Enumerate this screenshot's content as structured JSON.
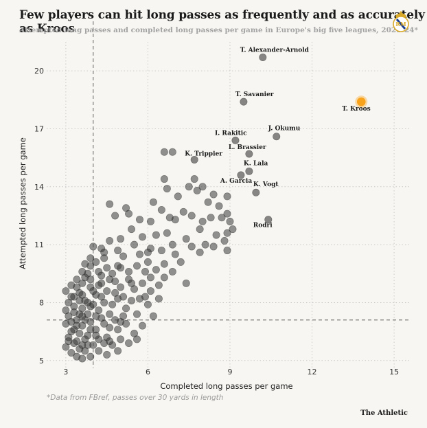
{
  "header": {
    "title": "Few players can hit long passes as frequently and as accurately as Kroos",
    "subtitle": "Attempted long passes and completed long passes per game in Europe's big five leagues, 2023-24*"
  },
  "logo": {
    "icon": "real-madrid-crest-icon",
    "gold": "#d8a928",
    "blue": "#1f3f8f",
    "red": "#c8283a"
  },
  "footnote": "*Data from FBref, passes over 30 yards in length",
  "brand": "The Athletic",
  "colors": {
    "point": "#3a3a3a",
    "highlight": "#f9a21b",
    "grid": "#c9c9c9",
    "reference": "#7a7a7a"
  },
  "chart_data": {
    "type": "scatter",
    "title": "Few players can hit long passes as frequently and as accurately as Kroos",
    "xlabel": "Completed long passes per game",
    "ylabel": "Attempted long passes per game",
    "xlim": [
      2.3,
      15.6
    ],
    "ylim": [
      4.6,
      21.5
    ],
    "x_ticks": [
      3,
      6,
      9,
      12,
      15
    ],
    "y_ticks": [
      5,
      8,
      11,
      14,
      17,
      20
    ],
    "reference_lines": {
      "x": 4,
      "y": 7.1
    },
    "grid": "dotted",
    "labeled_points": [
      {
        "name": "T. Alexander-Arnold",
        "x": 10.2,
        "y": 20.7
      },
      {
        "name": "T. Savanier",
        "x": 9.5,
        "y": 18.4
      },
      {
        "name": "T. Kroos",
        "x": 13.8,
        "y": 18.4,
        "highlight": true
      },
      {
        "name": "I. Rakitic",
        "x": 9.2,
        "y": 16.4
      },
      {
        "name": "J. Okumu",
        "x": 10.7,
        "y": 16.6
      },
      {
        "name": "L. Brassier",
        "x": 9.7,
        "y": 15.7
      },
      {
        "name": "K. Trippier",
        "x": 7.7,
        "y": 15.4
      },
      {
        "name": "K. Lala",
        "x": 9.7,
        "y": 14.8
      },
      {
        "name": "A. Garcia",
        "x": 9.4,
        "y": 14.6
      },
      {
        "name": "K. Vogt",
        "x": 9.95,
        "y": 13.7
      },
      {
        "name": "Rodri",
        "x": 10.4,
        "y": 12.3
      }
    ],
    "points": [
      [
        6.6,
        15.8
      ],
      [
        6.9,
        15.8
      ],
      [
        7.1,
        13.5
      ],
      [
        7.5,
        14.0
      ],
      [
        7.7,
        14.4
      ],
      [
        7.8,
        13.8
      ],
      [
        8.0,
        14.0
      ],
      [
        8.2,
        13.2
      ],
      [
        8.4,
        13.6
      ],
      [
        8.6,
        13.0
      ],
      [
        8.9,
        13.5
      ],
      [
        7.3,
        12.7
      ],
      [
        7.6,
        12.5
      ],
      [
        8.0,
        12.2
      ],
      [
        8.3,
        12.4
      ],
      [
        8.7,
        12.4
      ],
      [
        8.9,
        12.6
      ],
      [
        9.0,
        12.2
      ],
      [
        6.8,
        12.4
      ],
      [
        7.9,
        11.8
      ],
      [
        8.5,
        11.5
      ],
      [
        8.8,
        11.2
      ],
      [
        8.9,
        11.6
      ],
      [
        9.1,
        11.8
      ],
      [
        8.9,
        10.7
      ],
      [
        8.1,
        11.0
      ],
      [
        7.4,
        11.3
      ],
      [
        6.9,
        11.0
      ],
      [
        6.5,
        12.8
      ],
      [
        6.2,
        13.2
      ],
      [
        6.7,
        13.9
      ],
      [
        6.6,
        14.4
      ],
      [
        6.1,
        12.2
      ],
      [
        5.7,
        12.3
      ],
      [
        5.3,
        12.6
      ],
      [
        5.4,
        11.8
      ],
      [
        5.2,
        12.9
      ],
      [
        5.0,
        11.3
      ],
      [
        4.8,
        12.5
      ],
      [
        4.6,
        13.1
      ],
      [
        5.8,
        11.4
      ],
      [
        6.3,
        11.5
      ],
      [
        6.7,
        11.6
      ],
      [
        7.0,
        12.3
      ],
      [
        7.6,
        10.9
      ],
      [
        6.5,
        10.7
      ],
      [
        6.1,
        10.8
      ],
      [
        5.7,
        10.5
      ],
      [
        5.5,
        11.0
      ],
      [
        5.1,
        10.4
      ],
      [
        4.9,
        10.7
      ],
      [
        4.6,
        11.2
      ],
      [
        4.3,
        10.8
      ],
      [
        4.0,
        10.9
      ],
      [
        4.1,
        10.1
      ],
      [
        4.4,
        10.3
      ],
      [
        4.2,
        9.6
      ],
      [
        4.5,
        9.8
      ],
      [
        4.7,
        9.5
      ],
      [
        5.0,
        9.8
      ],
      [
        5.3,
        9.6
      ],
      [
        5.6,
        9.9
      ],
      [
        6.0,
        10.1
      ],
      [
        6.3,
        9.7
      ],
      [
        6.6,
        9.3
      ],
      [
        6.9,
        9.6
      ],
      [
        7.4,
        9.0
      ],
      [
        7.2,
        10.1
      ],
      [
        6.4,
        8.9
      ],
      [
        6.1,
        8.6
      ],
      [
        5.8,
        9.0
      ],
      [
        5.5,
        8.7
      ],
      [
        5.3,
        9.2
      ],
      [
        5.0,
        8.8
      ],
      [
        4.8,
        9.1
      ],
      [
        4.5,
        8.6
      ],
      [
        4.3,
        9.0
      ],
      [
        4.1,
        8.4
      ],
      [
        3.9,
        8.8
      ],
      [
        3.8,
        9.5
      ],
      [
        3.6,
        9.0
      ],
      [
        3.5,
        8.5
      ],
      [
        3.4,
        9.2
      ],
      [
        3.7,
        8.1
      ],
      [
        3.9,
        7.8
      ],
      [
        4.2,
        7.6
      ],
      [
        4.4,
        8.0
      ],
      [
        4.7,
        7.9
      ],
      [
        4.9,
        8.2
      ],
      [
        5.2,
        7.7
      ],
      [
        5.4,
        8.1
      ],
      [
        5.6,
        7.4
      ],
      [
        6.0,
        7.9
      ],
      [
        5.9,
        8.3
      ],
      [
        6.4,
        8.2
      ],
      [
        6.2,
        7.3
      ],
      [
        5.8,
        6.8
      ],
      [
        5.5,
        6.4
      ],
      [
        5.2,
        6.9
      ],
      [
        5.0,
        6.1
      ],
      [
        4.8,
        7.1
      ],
      [
        4.6,
        6.7
      ],
      [
        4.5,
        6.2
      ],
      [
        4.3,
        7.2
      ],
      [
        4.1,
        6.6
      ],
      [
        4.0,
        5.8
      ],
      [
        3.9,
        7.0
      ],
      [
        3.8,
        6.3
      ],
      [
        3.7,
        5.5
      ],
      [
        3.6,
        6.8
      ],
      [
        3.5,
        7.4
      ],
      [
        3.4,
        6.0
      ],
      [
        3.3,
        6.6
      ],
      [
        3.3,
        7.8
      ],
      [
        3.2,
        5.4
      ],
      [
        3.2,
        7.0
      ],
      [
        3.1,
        6.2
      ],
      [
        3.1,
        8.0
      ],
      [
        3.0,
        5.7
      ],
      [
        3.0,
        6.9
      ],
      [
        3.0,
        8.6
      ],
      [
        3.4,
        5.2
      ],
      [
        3.6,
        5.1
      ],
      [
        3.9,
        5.2
      ],
      [
        4.2,
        5.5
      ],
      [
        4.4,
        5.9
      ],
      [
        4.7,
        5.8
      ],
      [
        4.9,
        5.5
      ],
      [
        5.3,
        5.9
      ],
      [
        5.6,
        6.1
      ],
      [
        3.8,
        7.4
      ],
      [
        4.0,
        7.9
      ],
      [
        4.3,
        8.3
      ],
      [
        3.6,
        7.7
      ],
      [
        3.5,
        8.1
      ],
      [
        3.3,
        8.3
      ],
      [
        3.2,
        8.9
      ],
      [
        3.7,
        9.3
      ],
      [
        3.9,
        9.9
      ],
      [
        4.3,
        9.4
      ],
      [
        4.6,
        9.2
      ],
      [
        5.1,
        8.3
      ],
      [
        3.8,
        8.0
      ],
      [
        3.4,
        7.1
      ],
      [
        3.9,
        6.6
      ],
      [
        4.6,
        7.4
      ],
      [
        4.9,
        6.6
      ],
      [
        5.1,
        7.3
      ],
      [
        4.4,
        6.9
      ],
      [
        4.2,
        6.1
      ],
      [
        3.5,
        5.6
      ],
      [
        3.7,
        6.1
      ],
      [
        4.5,
        5.3
      ],
      [
        3.2,
        6.5
      ],
      [
        3.1,
        7.3
      ],
      [
        3.4,
        8.8
      ],
      [
        3.6,
        9.6
      ],
      [
        4.0,
        8.6
      ],
      [
        4.8,
        8.5
      ],
      [
        5.4,
        9.0
      ],
      [
        5.7,
        8.2
      ],
      [
        6.1,
        9.3
      ],
      [
        6.6,
        10.0
      ],
      [
        7.0,
        10.5
      ],
      [
        7.9,
        10.6
      ],
      [
        8.4,
        10.9
      ],
      [
        6.0,
        10.6
      ],
      [
        5.9,
        9.6
      ],
      [
        4.9,
        9.9
      ],
      [
        4.4,
        10.6
      ],
      [
        3.9,
        10.3
      ],
      [
        3.7,
        10.0
      ],
      [
        4.2,
        8.9
      ],
      [
        3.6,
        8.4
      ],
      [
        3.9,
        9.2
      ],
      [
        4.1,
        7.3
      ],
      [
        3.8,
        5.8
      ],
      [
        3.3,
        5.9
      ],
      [
        3.5,
        6.4
      ],
      [
        3.1,
        6.0
      ],
      [
        3.3,
        7.5
      ],
      [
        3.7,
        7.1
      ],
      [
        4.6,
        6.0
      ],
      [
        5.0,
        7.0
      ],
      [
        4.1,
        6.3
      ],
      [
        3.4,
        6.8
      ],
      [
        3.6,
        5.8
      ],
      [
        3.0,
        7.6
      ],
      [
        3.2,
        8.3
      ],
      [
        3.6,
        7.3
      ]
    ]
  }
}
